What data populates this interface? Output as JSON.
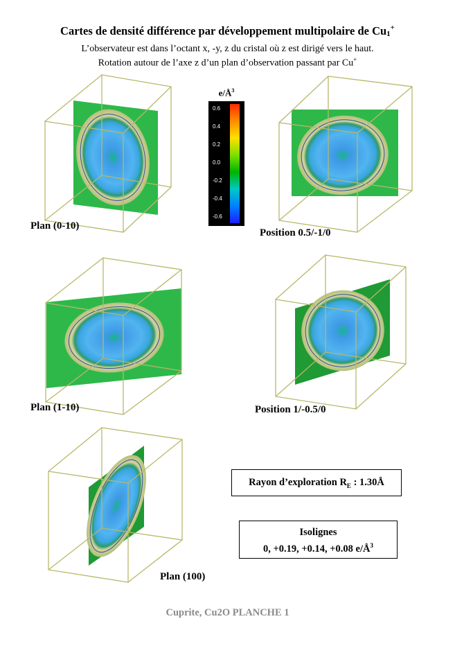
{
  "title": {
    "main": "Cartes de densité différence par développement multipolaire de Cu",
    "subscript": "1",
    "superscript": "+"
  },
  "subtitle_line1": "L’observateur est dans l’octant x, -y, z du cristal où z est dirigé vers le haut.",
  "subtitle_line2_main": "Rotation autour de l’axe z d’un plan d’observation passant par Cu",
  "subtitle_line2_sup": "+",
  "colorbar": {
    "unit_main": "e/Å",
    "unit_sup": "3",
    "ticks": [
      "0.6",
      "0.4",
      "0.2",
      "0.0",
      "-0.2",
      "-0.4",
      "-0.6"
    ],
    "colors": [
      "#ff2a00",
      "#ff8c00",
      "#ffe000",
      "#7fe000",
      "#00b400",
      "#00c8c8",
      "#0080ff",
      "#1e1eff"
    ]
  },
  "panels": [
    {
      "label": "Plan (0-10)"
    },
    {
      "label": "Position 0.5/-1/0"
    },
    {
      "label": "Plan (1-10)"
    },
    {
      "label": "Position 1/-0.5/0"
    },
    {
      "label": "Plan (100)"
    }
  ],
  "rayon": {
    "text_main": "Rayon d’exploration R",
    "text_sub": "E",
    "text_after": " : 1.30Å"
  },
  "isolignes": {
    "title": "Isolignes",
    "values_main": "0, +0.19, +0.14, +0.08 e/Å",
    "values_sup": "3"
  },
  "footer": "Cuprite, Cu2O  PLANCHE 1",
  "style": {
    "cube_edge_color": "#b8b86a",
    "plane_green": "#2eb84a",
    "plane_green_dark": "#1f9a34",
    "map_ring": "#c8c88c",
    "map_center": "#3c8ee8"
  }
}
